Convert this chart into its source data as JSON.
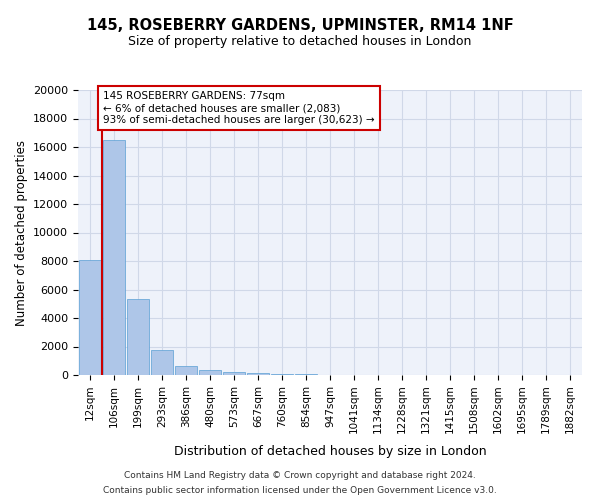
{
  "title": "145, ROSEBERRY GARDENS, UPMINSTER, RM14 1NF",
  "subtitle": "Size of property relative to detached houses in London",
  "xlabel": "Distribution of detached houses by size in London",
  "ylabel": "Number of detached properties",
  "categories": [
    "12sqm",
    "106sqm",
    "199sqm",
    "293sqm",
    "386sqm",
    "480sqm",
    "573sqm",
    "667sqm",
    "760sqm",
    "854sqm",
    "947sqm",
    "1041sqm",
    "1134sqm",
    "1228sqm",
    "1321sqm",
    "1415sqm",
    "1508sqm",
    "1602sqm",
    "1695sqm",
    "1789sqm",
    "1882sqm"
  ],
  "bar_heights": [
    8100,
    16500,
    5300,
    1750,
    650,
    350,
    200,
    150,
    100,
    60,
    30,
    20,
    15,
    10,
    8,
    5,
    4,
    3,
    2,
    2,
    1
  ],
  "bar_color": "#aec6e8",
  "bar_edge_color": "#5a9fd4",
  "grid_color": "#d0d8e8",
  "background_color": "#eef2fa",
  "vline_x": 0.5,
  "vline_color": "#cc0000",
  "annotation_text": "145 ROSEBERRY GARDENS: 77sqm\n← 6% of detached houses are smaller (2,083)\n93% of semi-detached houses are larger (30,623) →",
  "annotation_box_color": "#cc0000",
  "ylim": [
    0,
    20000
  ],
  "yticks": [
    0,
    2000,
    4000,
    6000,
    8000,
    10000,
    12000,
    14000,
    16000,
    18000,
    20000
  ],
  "footer_line1": "Contains HM Land Registry data © Crown copyright and database right 2024.",
  "footer_line2": "Contains public sector information licensed under the Open Government Licence v3.0."
}
